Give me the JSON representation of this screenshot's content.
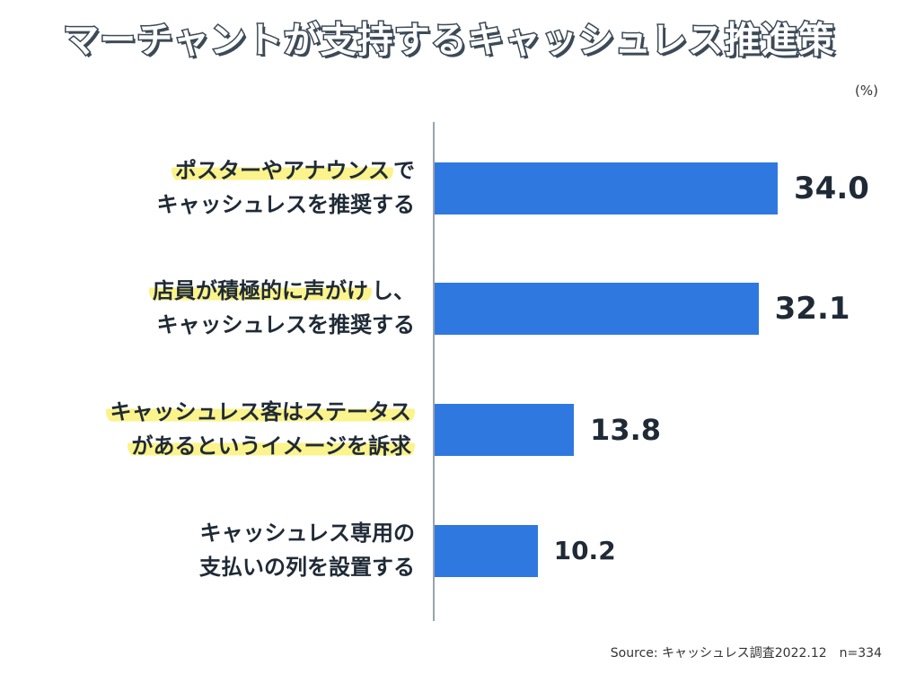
{
  "title": "マーチャントが支持するキャッシュレス推進策",
  "unit": "(%)",
  "source": "Source: キャッシュレス調査2022.12　n=334",
  "chart_data": {
    "type": "bar",
    "orientation": "horizontal",
    "title": "マーチャントが支持するキャッシュレス推進策",
    "categories": [
      "ポスターやアナウンスでキャッシュレスを推奨する",
      "店員が積極的に声がけし、キャッシュレスを推奨する",
      "キャッシュレス客はステータスがあるというイメージを訴求",
      "キャッシュレス専用の支払いの列を設置する"
    ],
    "values": [
      34.0,
      32.1,
      13.8,
      10.2
    ],
    "value_labels": [
      "34.0",
      "32.1",
      "13.8",
      "10.2"
    ],
    "xlim": [
      0,
      40
    ],
    "ylabel": "(%)",
    "label_lines": [
      [
        "ポスターやアナウンス",
        "で",
        "キャッシュレスを推奨する"
      ],
      [
        "店員が積極的に声がけ",
        "し、",
        "キャッシュレスを推奨する"
      ],
      [
        "キャッシュレス客はステータス",
        "",
        "があるというイメージを訴求"
      ],
      [
        "キャッシュレス専用の",
        "",
        "支払いの列を設置する"
      ]
    ],
    "highlighted": [
      true,
      true,
      true,
      false
    ],
    "bar_color": "#2f78e0",
    "highlight_color": "#fbf38b"
  }
}
